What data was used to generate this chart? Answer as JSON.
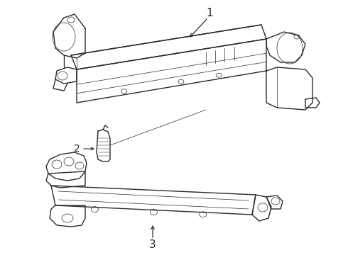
{
  "background_color": "#ffffff",
  "line_color": "#2a2a2a",
  "fig_width": 4.9,
  "fig_height": 3.6,
  "dpi": 100,
  "lw_main": 1.0,
  "lw_thin": 0.5
}
